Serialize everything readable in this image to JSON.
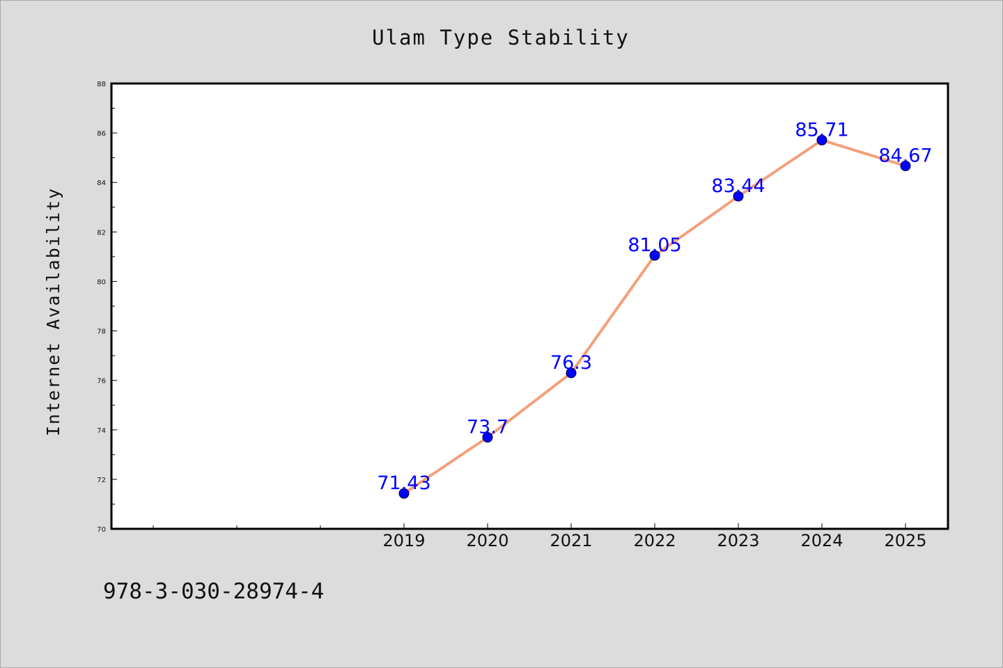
{
  "page": {
    "isbn_text": "978-3-030-28974-4",
    "background": "#dcdcdc"
  },
  "chart_data": {
    "type": "line",
    "title": "Ulam Type Stability",
    "xlabel": "",
    "ylabel": "Internet Availability",
    "x": [
      "2019",
      "2020",
      "2021",
      "2022",
      "2023",
      "2024",
      "2025"
    ],
    "x_extra_minor_ticks": 3,
    "series": [
      {
        "values": [
          71.43,
          73.7,
          76.3,
          81.05,
          83.44,
          85.71,
          84.67
        ],
        "labels": [
          "71.43",
          "73.7",
          "76.3",
          "81.05",
          "83.44",
          "85.71",
          "84.67"
        ],
        "line_color": "#f4a07a",
        "marker_color": "#0000ff"
      }
    ],
    "ylim": [
      70,
      88
    ],
    "yticks": [
      "70",
      "72",
      "74",
      "76",
      "78",
      "80",
      "82",
      "84",
      "86",
      "88"
    ],
    "label_color": "#0000ff",
    "grid": false,
    "legend": "none"
  }
}
